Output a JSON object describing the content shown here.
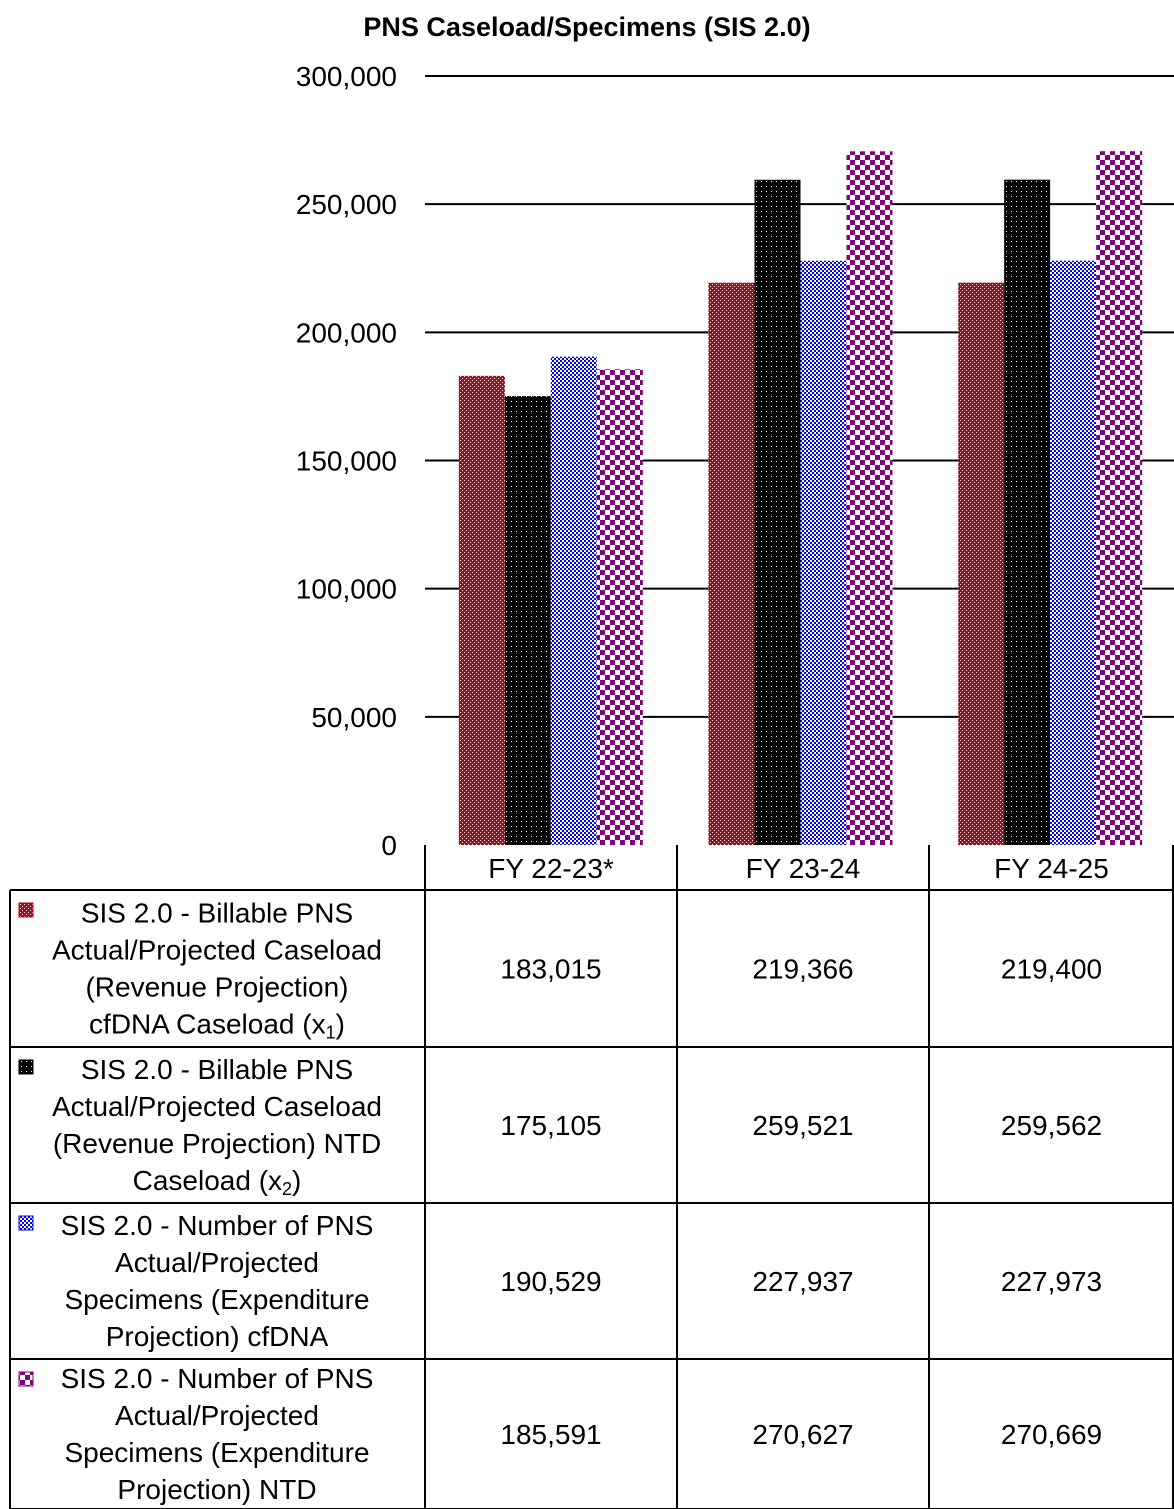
{
  "chart_data": {
    "type": "bar",
    "title": "PNS Caseload/Specimens (SIS 2.0)",
    "categories": [
      "FY 22-23*",
      "FY 23-24",
      "FY 24-25"
    ],
    "ylim": [
      0,
      300000
    ],
    "yticks": [
      "0",
      "50,000",
      "100,000",
      "150,000",
      "200,000",
      "250,000",
      "300,000"
    ],
    "grid": true,
    "legend_placement": "data-table-left",
    "series": [
      {
        "name": "SIS 2.0 - Billable PNS Actual/Projected Caseload (Revenue Projection) cfDNA Caseload (x1)",
        "legend_lines": [
          "SIS 2.0 - Billable PNS",
          "Actual/Projected Caseload",
          "(Revenue Projection)",
          "cfDNA Caseload (x",
          "1",
          ")"
        ],
        "values": [
          183015,
          219366,
          219400
        ],
        "labels": [
          "183,015",
          "219,366",
          "219,400"
        ],
        "color": "#c0000c",
        "pattern": "dots-red"
      },
      {
        "name": "SIS 2.0 - Billable PNS Actual/Projected Caseload (Revenue Projection) NTD Caseload (x2)",
        "legend_lines": [
          "SIS 2.0 - Billable PNS",
          "Actual/Projected Caseload",
          "(Revenue Projection) NTD",
          "Caseload (x",
          "2",
          ")"
        ],
        "values": [
          175105,
          259521,
          259562
        ],
        "labels": [
          "175,105",
          "259,521",
          "259,562"
        ],
        "color": "#000000",
        "pattern": "dots-black"
      },
      {
        "name": "SIS 2.0 - Number of PNS Actual/Projected Specimens (Expenditure Projection) cfDNA",
        "legend_lines": [
          "SIS 2.0 - Number of PNS",
          "Actual/Projected",
          "Specimens (Expenditure",
          "Projection) cfDNA"
        ],
        "values": [
          190529,
          227937,
          227973
        ],
        "labels": [
          "190,529",
          "227,937",
          "227,973"
        ],
        "color": "#0000ff",
        "pattern": "check-blue"
      },
      {
        "name": "SIS 2.0 - Number of PNS Actual/Projected Specimens (Expenditure Projection) NTD",
        "legend_lines": [
          "SIS 2.0 - Number of PNS",
          "Actual/Projected",
          "Specimens (Expenditure",
          "Projection) NTD"
        ],
        "values": [
          185591,
          270627,
          270669
        ],
        "labels": [
          "185,591",
          "270,627",
          "270,669"
        ],
        "color": "#800080",
        "pattern": "check-purple"
      }
    ]
  }
}
